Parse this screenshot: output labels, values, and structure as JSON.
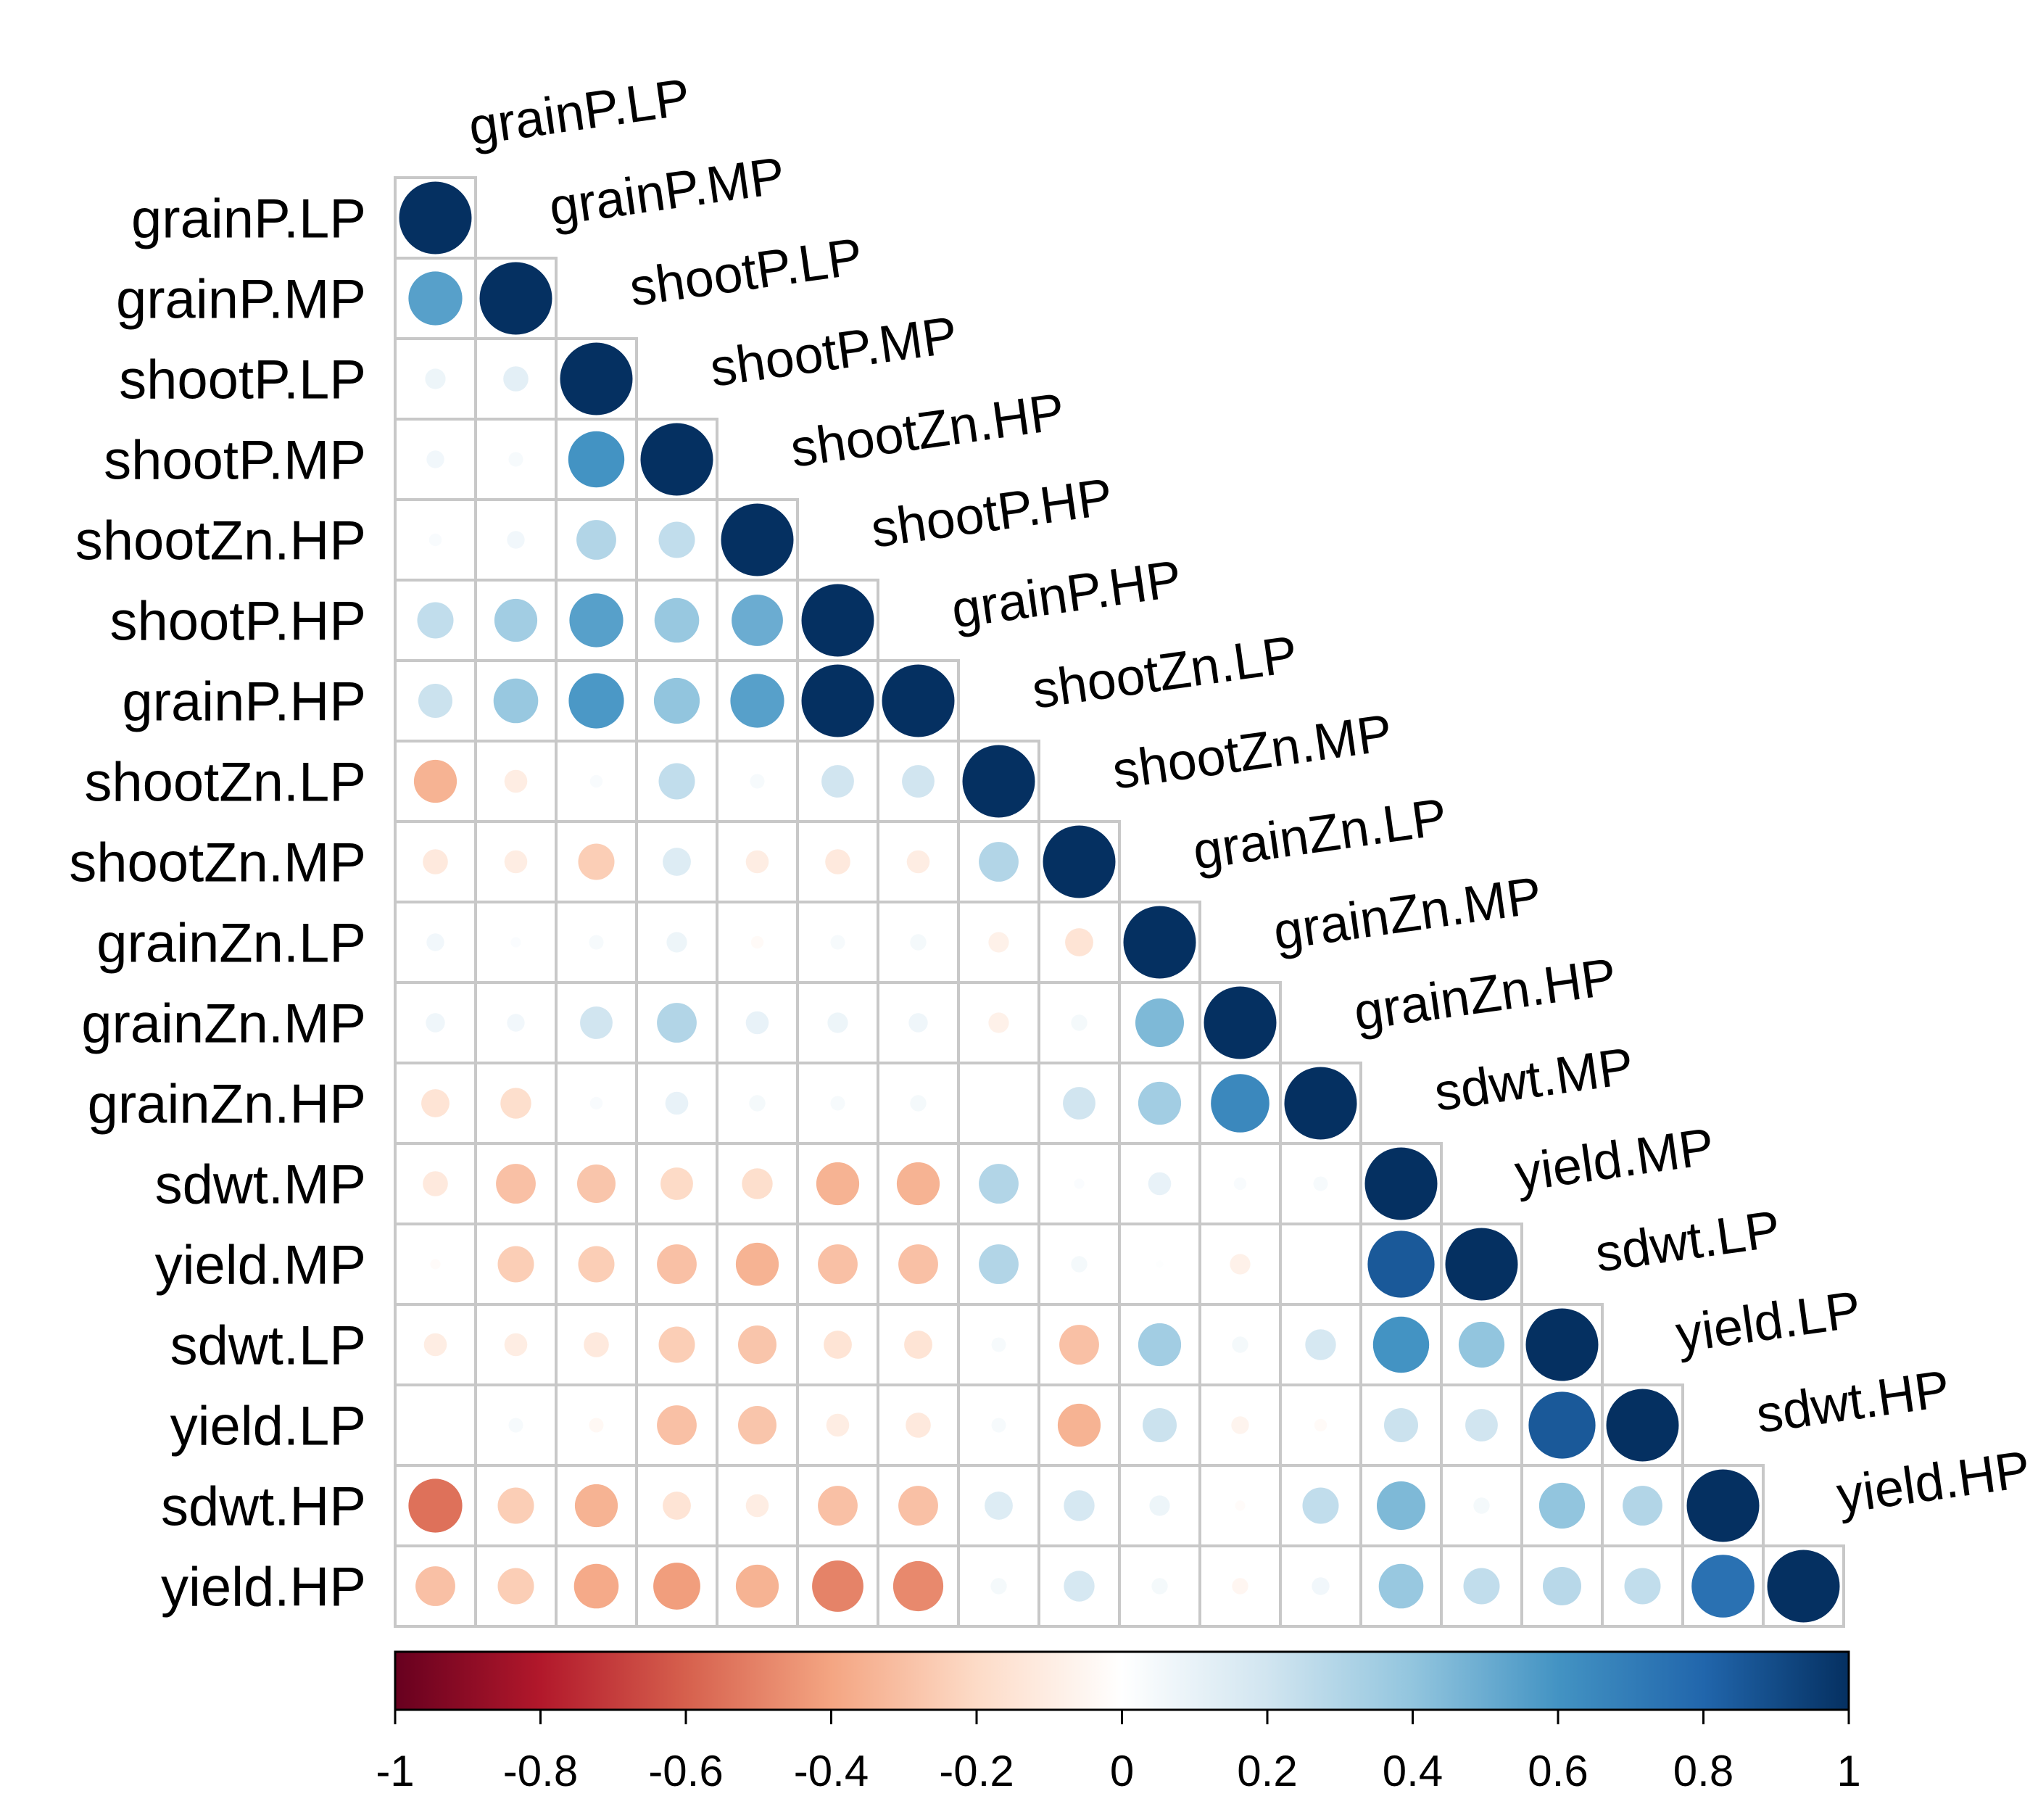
{
  "chart_data": {
    "type": "heatmap",
    "subtype": "correlation-matrix-lower-triangle",
    "glyph": "circle",
    "variables": [
      "grainP.LP",
      "grainP.MP",
      "shootP.LP",
      "shootP.MP",
      "shootZn.HP",
      "shootP.HP",
      "grainP.HP",
      "shootZn.LP",
      "shootZn.MP",
      "grainZn.LP",
      "grainZn.MP",
      "grainZn.HP",
      "sdwt.MP",
      "yield.MP",
      "sdwt.LP",
      "yield.LP",
      "sdwt.HP",
      "yield.HP"
    ],
    "matrix": [
      [
        1
      ],
      [
        0.55,
        1
      ],
      [
        0.08,
        0.12,
        1
      ],
      [
        0.06,
        0.04,
        0.6,
        1
      ],
      [
        0.03,
        0.06,
        0.3,
        0.25,
        1
      ],
      [
        0.25,
        0.35,
        0.55,
        0.38,
        0.5,
        1
      ],
      [
        0.22,
        0.38,
        0.58,
        0.4,
        0.55,
        1.0,
        1
      ],
      [
        -0.35,
        -0.1,
        0.03,
        0.25,
        0.04,
        0.2,
        0.2,
        1
      ],
      [
        -0.12,
        -0.1,
        -0.25,
        0.15,
        -0.1,
        -0.12,
        -0.1,
        0.3,
        1
      ],
      [
        0.06,
        0.02,
        0.04,
        0.08,
        -0.03,
        0.04,
        0.05,
        -0.08,
        -0.15,
        1
      ],
      [
        0.07,
        0.06,
        0.2,
        0.3,
        0.1,
        0.08,
        0.07,
        -0.08,
        0.05,
        0.45,
        1
      ],
      [
        -0.15,
        -0.18,
        0.03,
        0.1,
        0.05,
        0.04,
        0.05,
        0.0,
        0.2,
        0.35,
        0.65,
        1
      ],
      [
        -0.12,
        -0.3,
        -0.28,
        -0.2,
        -0.18,
        -0.35,
        -0.35,
        0.3,
        0.02,
        0.1,
        0.03,
        0.04,
        1
      ],
      [
        -0.02,
        -0.25,
        -0.25,
        -0.3,
        -0.35,
        -0.3,
        -0.3,
        0.3,
        0.05,
        0.01,
        -0.08,
        0.0,
        0.85,
        1
      ],
      [
        -0.1,
        -0.1,
        -0.12,
        -0.25,
        -0.28,
        -0.15,
        -0.15,
        0.04,
        -0.3,
        0.35,
        0.05,
        0.18,
        0.6,
        0.4,
        1
      ],
      [
        0.0,
        0.04,
        -0.04,
        -0.3,
        -0.28,
        -0.1,
        -0.12,
        0.04,
        -0.35,
        0.22,
        -0.06,
        -0.03,
        0.22,
        0.2,
        0.85,
        1
      ],
      [
        -0.55,
        -0.25,
        -0.35,
        -0.15,
        -0.1,
        -0.3,
        -0.3,
        0.15,
        0.18,
        0.08,
        -0.02,
        0.25,
        0.45,
        0.05,
        0.4,
        0.3,
        1
      ],
      [
        -0.3,
        -0.25,
        -0.38,
        -0.42,
        -0.35,
        -0.5,
        -0.48,
        0.05,
        0.18,
        0.05,
        -0.05,
        0.06,
        0.38,
        0.25,
        0.28,
        0.25,
        0.75,
        1
      ]
    ],
    "colorbar": {
      "min": -1,
      "max": 1,
      "ticks": [
        "-1",
        "-0.8",
        "-0.6",
        "-0.4",
        "-0.2",
        "0",
        "0.2",
        "0.4",
        "0.6",
        "0.8",
        "1"
      ]
    },
    "colors": {
      "scale": [
        "#67001F",
        "#B2182B",
        "#D6604D",
        "#F4A582",
        "#FDDBC7",
        "#FFFFFF",
        "#D1E5F0",
        "#92C5DE",
        "#4393C3",
        "#2166AC",
        "#053061"
      ],
      "grid": "#c8c8c8",
      "text": "#000000"
    }
  }
}
